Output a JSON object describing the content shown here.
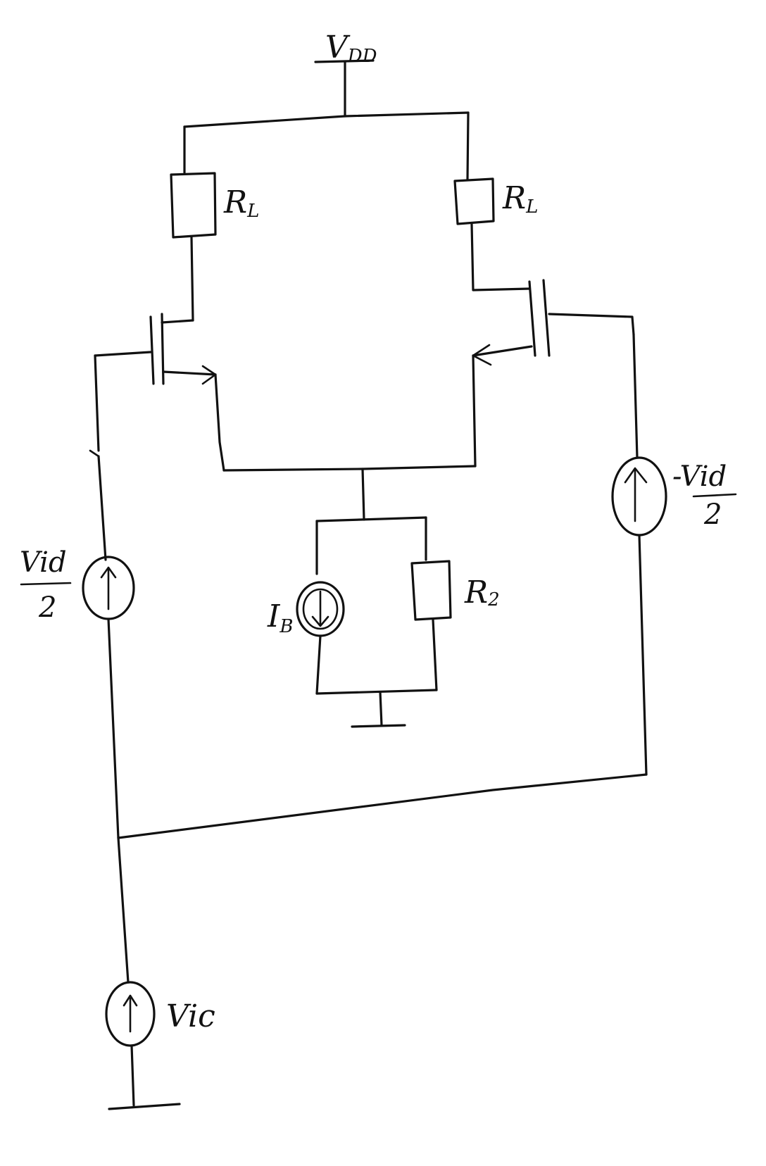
{
  "labels": {
    "vdd": "V",
    "vdd_sub": "DD",
    "rl_left": "R",
    "rl_left_sub": "L",
    "rl_right": "R",
    "rl_right_sub": "L",
    "vid_left_num": "Vid",
    "vid_left_den": "2",
    "vid_right_num": "-Vid",
    "vid_right_den": "2",
    "ib": "I",
    "ib_sub": "B",
    "r2": "R",
    "r2_sub": "2",
    "vic": "Vic"
  }
}
